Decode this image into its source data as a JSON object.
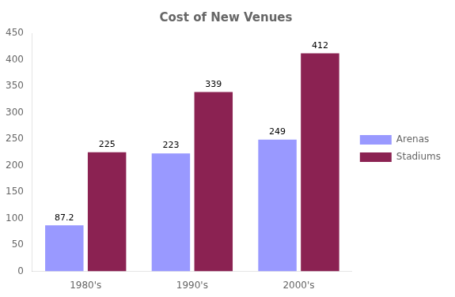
{
  "chart_data": {
    "type": "bar",
    "title": "Cost of New Venues",
    "categories": [
      "1980's",
      "1990's",
      "2000's"
    ],
    "series": [
      {
        "name": "Arenas",
        "color": "#9999ff",
        "values": [
          87.2,
          223,
          249
        ]
      },
      {
        "name": "Stadiums",
        "color": "#8b2252",
        "values": [
          225,
          339,
          412
        ]
      }
    ],
    "ylim": [
      0,
      450
    ],
    "yticks": [
      0,
      50,
      100,
      150,
      200,
      250,
      300,
      350,
      400,
      450
    ],
    "grid": false,
    "legend": "right",
    "data_labels": true
  }
}
